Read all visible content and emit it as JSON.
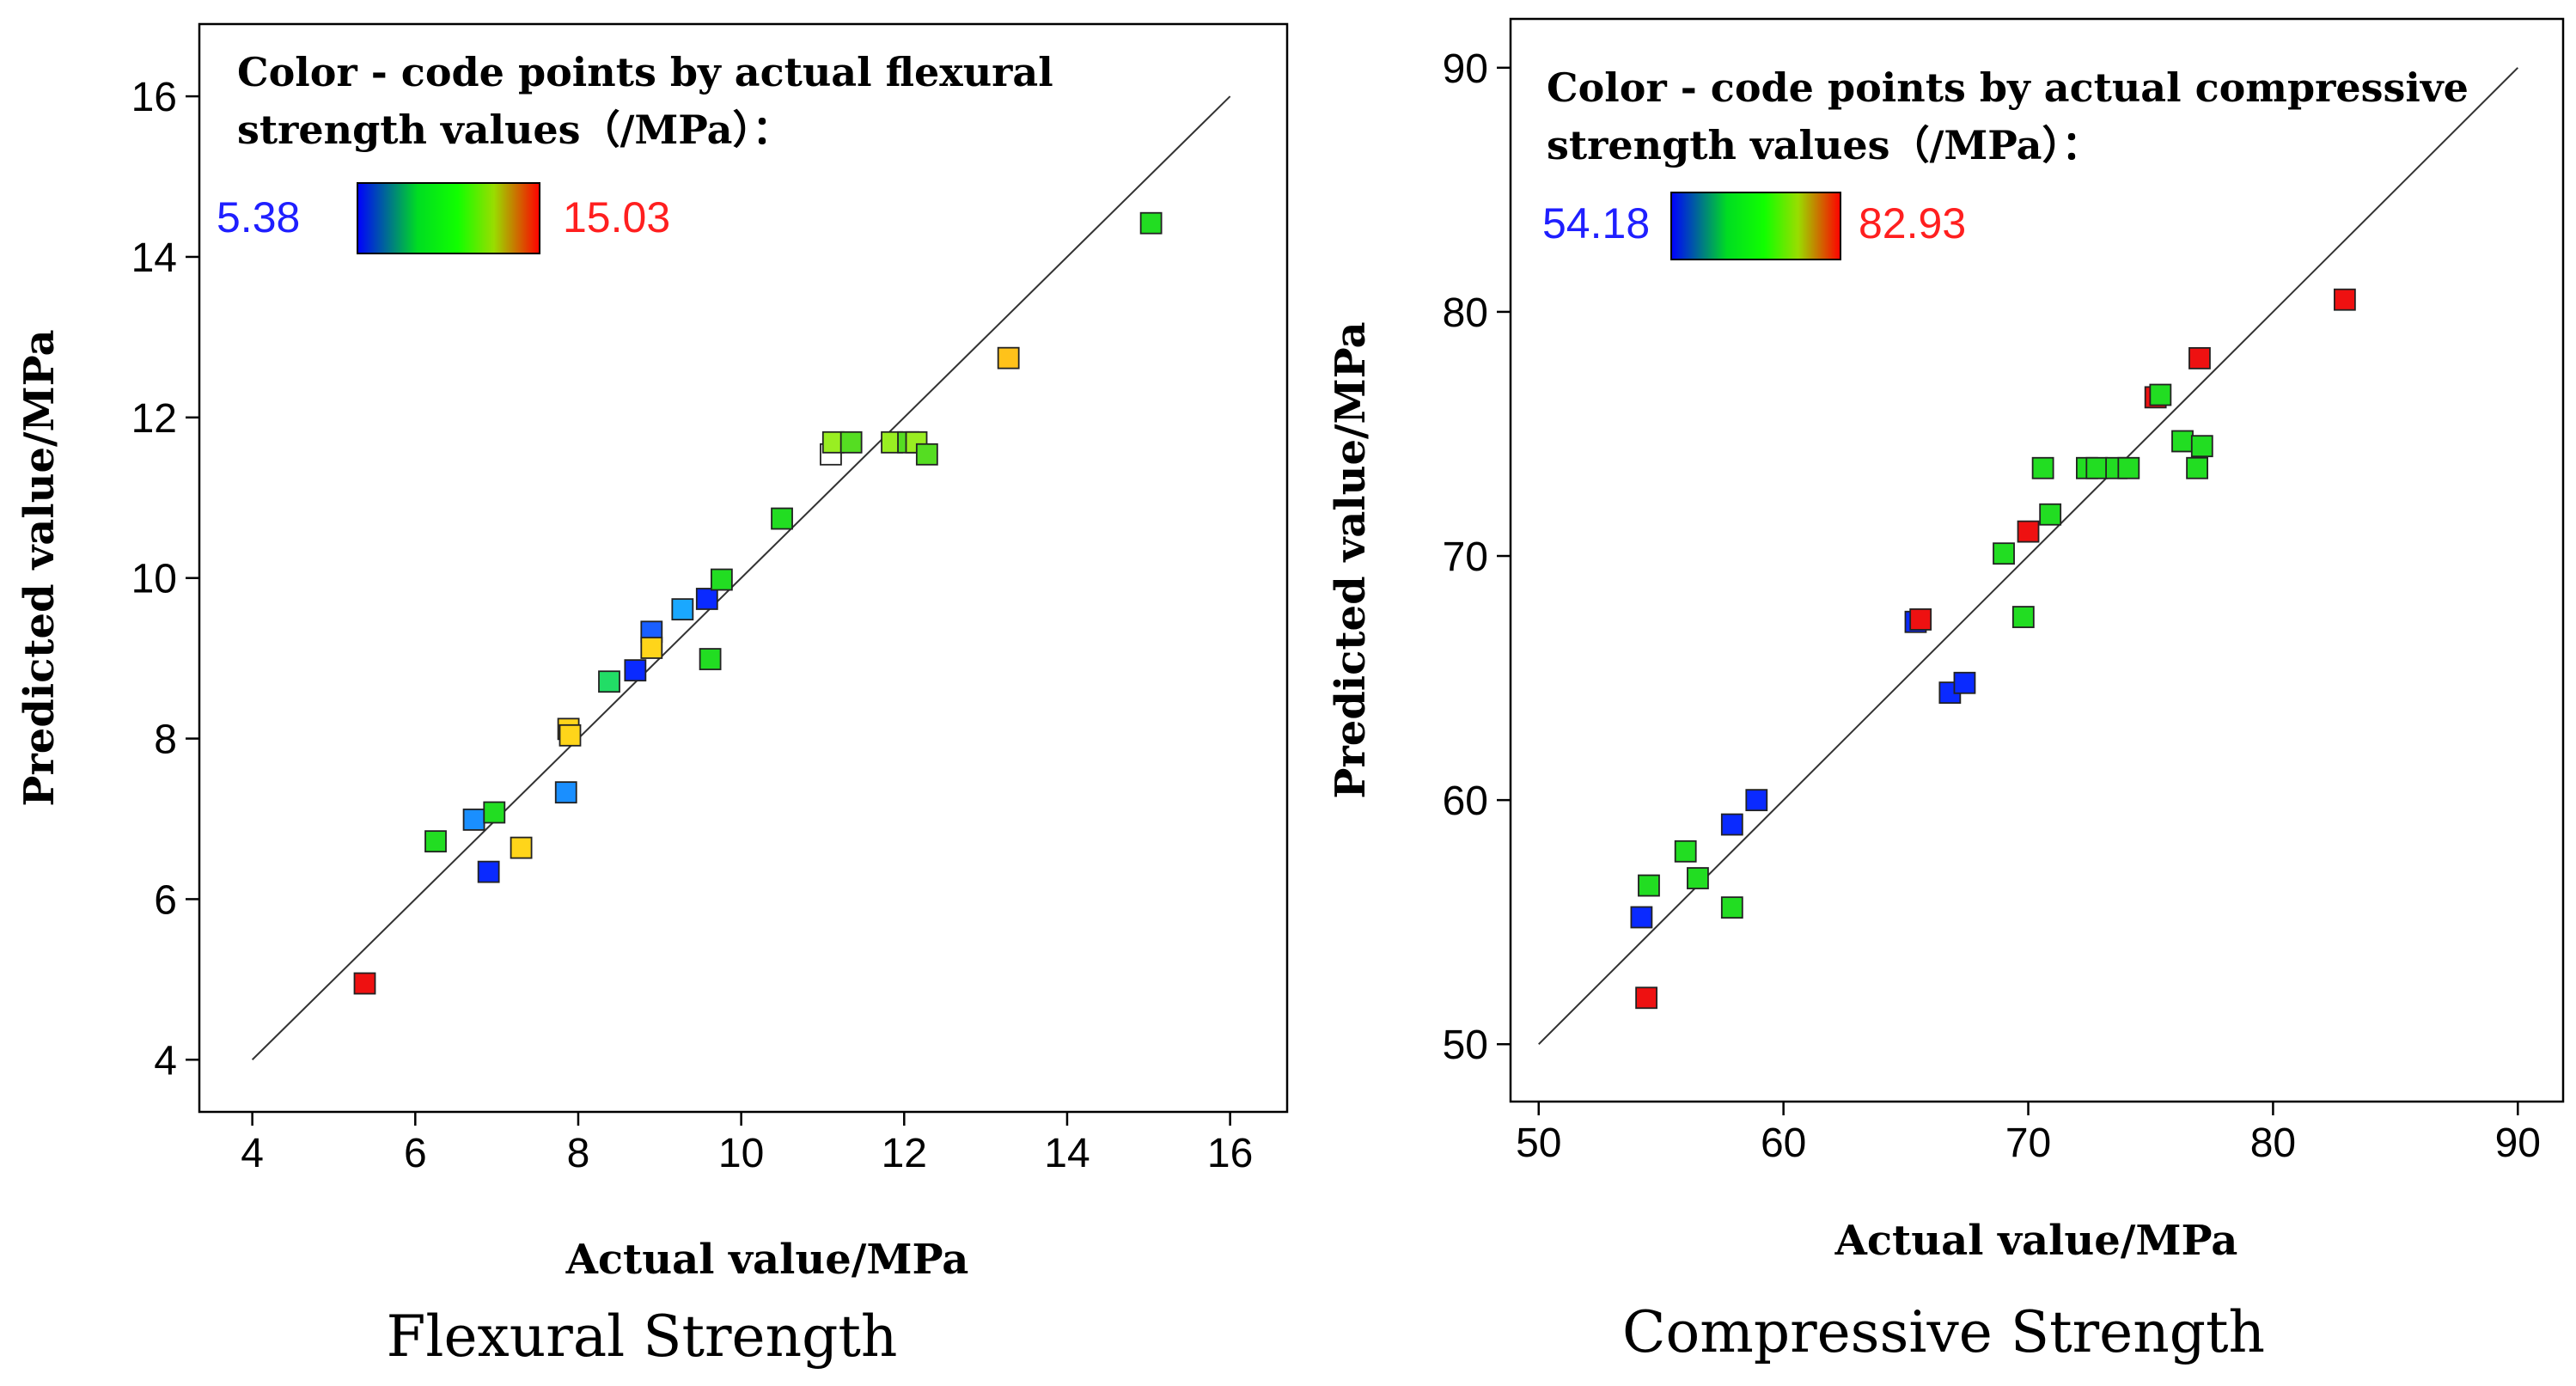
{
  "colors": {
    "axis": "#000000",
    "diagonal": "#333333",
    "low_label": "#1f1fff",
    "high_label": "#ff1f1f",
    "gradient": [
      "#0000ff",
      "#00ff00",
      "#ffff00",
      "#ff0000"
    ]
  },
  "chart_data": [
    {
      "type": "scatter",
      "title": "Flexural Strength",
      "xlabel": "Actual value/MPa",
      "ylabel": "Predicted value/MPa",
      "xlim": [
        3.35,
        16.7
      ],
      "ylim": [
        3.35,
        16.9
      ],
      "xticks": [
        4,
        6,
        8,
        10,
        12,
        14,
        16
      ],
      "yticks": [
        4,
        6,
        8,
        10,
        12,
        14,
        16
      ],
      "xtick_labels": [
        "4",
        "6",
        "8",
        "10",
        "12",
        "14",
        "16"
      ],
      "ytick_labels": [
        "4",
        "6",
        "8",
        "10",
        "12",
        "14",
        "16"
      ],
      "diagonal": [
        4,
        16
      ],
      "legend_title_line1": "Color - code points by actual flexural",
      "legend_title_line2": "strength values（/MPa）：",
      "scale_min_label": "5.38",
      "scale_max_label": "15.03",
      "points": [
        {
          "x": 5.38,
          "y": 4.95,
          "color": "#ee1111"
        },
        {
          "x": 6.25,
          "y": 6.72,
          "color": "#22dd22"
        },
        {
          "x": 6.72,
          "y": 6.99,
          "color": "#1a8fff"
        },
        {
          "x": 6.97,
          "y": 7.08,
          "color": "#22dd22"
        },
        {
          "x": 6.9,
          "y": 6.34,
          "color": "#0a2aff"
        },
        {
          "x": 7.3,
          "y": 6.64,
          "color": "#ffd51a"
        },
        {
          "x": 7.85,
          "y": 7.33,
          "color": "#1a8fff"
        },
        {
          "x": 7.88,
          "y": 8.12,
          "color": "#ffd51a"
        },
        {
          "x": 7.9,
          "y": 8.04,
          "color": "#ffd51a"
        },
        {
          "x": 8.38,
          "y": 8.71,
          "color": "#22dd66"
        },
        {
          "x": 8.7,
          "y": 8.85,
          "color": "#0a2aff"
        },
        {
          "x": 8.9,
          "y": 9.33,
          "color": "#1a5fff"
        },
        {
          "x": 8.9,
          "y": 9.13,
          "color": "#ffd51a"
        },
        {
          "x": 9.28,
          "y": 9.61,
          "color": "#1aa8ff"
        },
        {
          "x": 9.58,
          "y": 9.74,
          "color": "#0a2aff"
        },
        {
          "x": 9.62,
          "y": 8.99,
          "color": "#22dd22"
        },
        {
          "x": 9.76,
          "y": 9.98,
          "color": "#22dd22"
        },
        {
          "x": 10.5,
          "y": 10.74,
          "color": "#22dd22"
        },
        {
          "x": 11.1,
          "y": 11.54,
          "color": "#ffffff"
        },
        {
          "x": 11.13,
          "y": 11.69,
          "color": "#99ee22"
        },
        {
          "x": 11.35,
          "y": 11.69,
          "color": "#55dd22"
        },
        {
          "x": 11.85,
          "y": 11.69,
          "color": "#99ee22"
        },
        {
          "x": 12.05,
          "y": 11.69,
          "color": "#55dd22"
        },
        {
          "x": 12.15,
          "y": 11.69,
          "color": "#99ee22"
        },
        {
          "x": 12.28,
          "y": 11.54,
          "color": "#55dd22"
        },
        {
          "x": 13.28,
          "y": 12.74,
          "color": "#ffc21a"
        },
        {
          "x": 15.03,
          "y": 14.42,
          "color": "#22dd22"
        }
      ]
    },
    {
      "type": "scatter",
      "title": "Compressive Strength",
      "xlabel": "Actual value/MPa",
      "ylabel": "Predicted value/MPa",
      "xlim": [
        48.85,
        91.85
      ],
      "ylim": [
        47.65,
        92.0
      ],
      "xticks": [
        50,
        60,
        70,
        80,
        90
      ],
      "yticks": [
        50,
        60,
        70,
        80,
        90
      ],
      "xtick_labels": [
        "50",
        "60",
        "70",
        "80",
        "90"
      ],
      "ytick_labels": [
        "50",
        "60",
        "70",
        "80",
        "90"
      ],
      "diagonal": [
        50,
        90
      ],
      "legend_title_line1": "Color - code points by actual compressive",
      "legend_title_line2": "strength values（/MPa）：",
      "scale_min_label": "54.18",
      "scale_max_label": "82.93",
      "points": [
        {
          "x": 54.2,
          "y": 55.2,
          "color": "#0a2aff"
        },
        {
          "x": 54.4,
          "y": 51.9,
          "color": "#ee1111"
        },
        {
          "x": 54.5,
          "y": 56.5,
          "color": "#22dd22"
        },
        {
          "x": 56.0,
          "y": 57.9,
          "color": "#22dd22"
        },
        {
          "x": 56.5,
          "y": 56.8,
          "color": "#22dd22"
        },
        {
          "x": 57.9,
          "y": 59.0,
          "color": "#0a2aff"
        },
        {
          "x": 57.9,
          "y": 55.6,
          "color": "#22dd22"
        },
        {
          "x": 58.9,
          "y": 60.0,
          "color": "#0a2aff"
        },
        {
          "x": 65.4,
          "y": 67.3,
          "color": "#0a2aff"
        },
        {
          "x": 65.6,
          "y": 67.4,
          "color": "#ee1111"
        },
        {
          "x": 66.8,
          "y": 64.4,
          "color": "#0a2aff"
        },
        {
          "x": 67.4,
          "y": 64.8,
          "color": "#0a2aff"
        },
        {
          "x": 69.0,
          "y": 70.1,
          "color": "#22dd22"
        },
        {
          "x": 69.8,
          "y": 67.5,
          "color": "#22dd22"
        },
        {
          "x": 70.0,
          "y": 71.0,
          "color": "#ee1111"
        },
        {
          "x": 70.6,
          "y": 73.6,
          "color": "#22dd22"
        },
        {
          "x": 70.9,
          "y": 71.7,
          "color": "#22dd22"
        },
        {
          "x": 72.4,
          "y": 73.6,
          "color": "#22dd22"
        },
        {
          "x": 72.8,
          "y": 73.6,
          "color": "#22dd22"
        },
        {
          "x": 73.6,
          "y": 73.6,
          "color": "#22dd22"
        },
        {
          "x": 74.1,
          "y": 73.6,
          "color": "#22dd22"
        },
        {
          "x": 75.2,
          "y": 76.5,
          "color": "#ee1111"
        },
        {
          "x": 75.4,
          "y": 76.6,
          "color": "#22dd22"
        },
        {
          "x": 76.3,
          "y": 74.7,
          "color": "#22dd22"
        },
        {
          "x": 76.9,
          "y": 73.6,
          "color": "#22dd22"
        },
        {
          "x": 77.0,
          "y": 78.1,
          "color": "#ee1111"
        },
        {
          "x": 77.1,
          "y": 74.5,
          "color": "#22dd22"
        },
        {
          "x": 82.93,
          "y": 80.5,
          "color": "#ee1111"
        }
      ]
    }
  ]
}
